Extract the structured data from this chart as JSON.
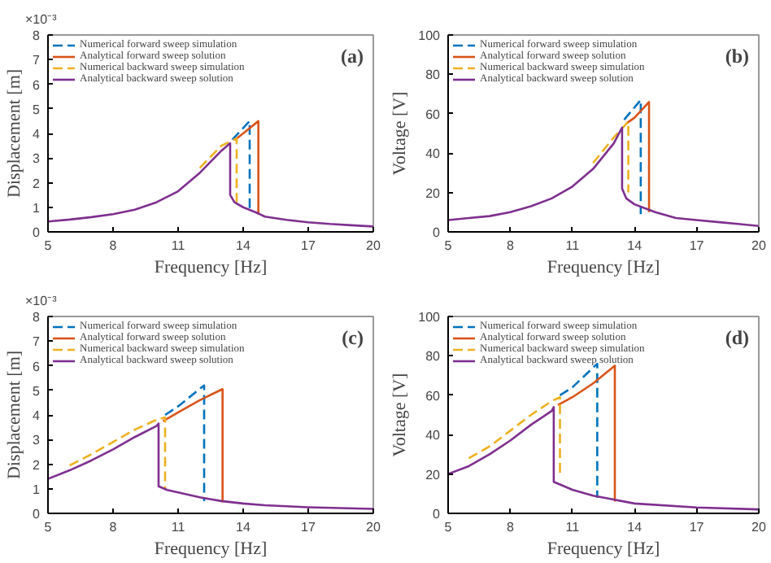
{
  "chart_data": [
    {
      "type": "line",
      "xlabel": "Frequency [Hz]",
      "ylabel": "Displacement [m]",
      "annotations": [
        "×10⁻³",
        "(a)"
      ],
      "xlim": [
        5,
        20
      ],
      "xticks": [
        5,
        8,
        11,
        14,
        17,
        20
      ],
      "ylim": [
        0,
        8
      ],
      "yticks": [
        0,
        1,
        2,
        3,
        4,
        5,
        6,
        7,
        8
      ],
      "grid": false,
      "legend": "top left",
      "series": [
        {
          "name": "Numerical forward sweep simulation",
          "color": "#0072bd",
          "line_style": "dashed",
          "x": [
            13.5,
            14.3,
            14.3
          ],
          "values": [
            3.75,
            4.5,
            0.8
          ]
        },
        {
          "name": "Analytical forward sweep solution",
          "color": "#d95319",
          "x": [
            13.6,
            14,
            14.7,
            14.7
          ],
          "values": [
            3.73,
            4.0,
            4.5,
            0.7
          ]
        },
        {
          "name": "Numerical backward sweep simulation",
          "color": "#edb120",
          "line_style": "dashed",
          "x": [
            12,
            13,
            13.7,
            13.7
          ],
          "values": [
            2.6,
            3.5,
            3.8,
            1.2
          ]
        },
        {
          "name": "Analytical backward sweep solution",
          "color": "#7e2f8e",
          "x": [
            5,
            6,
            7,
            8,
            9,
            10,
            11,
            12,
            13,
            13.4,
            13.4,
            13.6,
            14,
            14.7,
            15,
            16,
            17,
            18,
            19,
            20
          ],
          "values": [
            0.42,
            0.5,
            0.6,
            0.72,
            0.9,
            1.2,
            1.65,
            2.4,
            3.3,
            3.6,
            1.5,
            1.2,
            1.0,
            0.75,
            0.62,
            0.49,
            0.39,
            0.32,
            0.27,
            0.22
          ]
        }
      ]
    },
    {
      "type": "line",
      "xlabel": "Frequency [Hz]",
      "ylabel": "Voltage [V]",
      "annotations": [
        "(b)"
      ],
      "xlim": [
        5,
        20
      ],
      "xticks": [
        5,
        8,
        11,
        14,
        17,
        20
      ],
      "ylim": [
        0,
        100
      ],
      "yticks": [
        0,
        20,
        40,
        60,
        80,
        100
      ],
      "grid": false,
      "legend": "top left",
      "series": [
        {
          "name": "Numerical forward sweep simulation",
          "color": "#0072bd",
          "line_style": "dashed",
          "x": [
            13.5,
            14.3,
            14.3
          ],
          "values": [
            57,
            67,
            9
          ]
        },
        {
          "name": "Analytical forward sweep solution",
          "color": "#d95319",
          "x": [
            13.6,
            14,
            14.7,
            14.7
          ],
          "values": [
            55,
            58,
            66,
            10
          ]
        },
        {
          "name": "Numerical backward sweep simulation",
          "color": "#edb120",
          "line_style": "dashed",
          "x": [
            12,
            13,
            13.7,
            13.7
          ],
          "values": [
            35,
            48,
            56,
            20
          ]
        },
        {
          "name": "Analytical backward sweep solution",
          "color": "#7e2f8e",
          "x": [
            5,
            6,
            7,
            8,
            9,
            10,
            11,
            12,
            13,
            13.4,
            13.4,
            13.6,
            14,
            15,
            16,
            17,
            18,
            19,
            20
          ],
          "values": [
            6,
            7,
            8,
            10,
            13,
            17,
            23,
            32,
            45,
            53,
            22,
            17,
            14,
            10,
            7,
            6,
            5,
            4,
            3
          ]
        }
      ]
    },
    {
      "type": "line",
      "xlabel": "Frequency [Hz]",
      "ylabel": "Displacement [m]",
      "annotations": [
        "×10⁻³",
        "(c)"
      ],
      "xlim": [
        5,
        20
      ],
      "xticks": [
        5,
        8,
        11,
        14,
        17,
        20
      ],
      "ylim": [
        0,
        8
      ],
      "yticks": [
        0,
        1,
        2,
        3,
        4,
        5,
        6,
        7,
        8
      ],
      "grid": false,
      "legend": "top left",
      "series": [
        {
          "name": "Numerical forward sweep simulation",
          "color": "#0072bd",
          "line_style": "dashed",
          "x": [
            10.4,
            11,
            12.2,
            12.2
          ],
          "values": [
            4.0,
            4.35,
            5.2,
            0.5
          ]
        },
        {
          "name": "Analytical forward sweep solution",
          "color": "#d95319",
          "x": [
            10.3,
            10.5,
            11,
            12,
            13.05,
            13.05
          ],
          "values": [
            3.75,
            3.85,
            4.1,
            4.6,
            5.05,
            0.45
          ]
        },
        {
          "name": "Numerical backward sweep simulation",
          "color": "#edb120",
          "line_style": "dashed",
          "x": [
            6,
            7,
            8,
            9,
            10,
            10.4,
            10.4
          ],
          "values": [
            1.95,
            2.4,
            2.9,
            3.4,
            3.8,
            3.9,
            1.0
          ]
        },
        {
          "name": "Analytical backward sweep solution",
          "color": "#7e2f8e",
          "x": [
            5,
            6,
            7,
            8,
            9,
            10,
            10.1,
            10.1,
            10.5,
            11,
            12,
            13,
            14,
            15,
            17,
            20
          ],
          "values": [
            1.4,
            1.75,
            2.15,
            2.6,
            3.1,
            3.55,
            3.65,
            1.1,
            0.95,
            0.85,
            0.65,
            0.5,
            0.4,
            0.33,
            0.25,
            0.18
          ]
        }
      ]
    },
    {
      "type": "line",
      "xlabel": "Frequency [Hz]",
      "ylabel": "Voltage [V]",
      "annotations": [
        "(d)"
      ],
      "xlim": [
        5,
        20
      ],
      "xticks": [
        5,
        8,
        11,
        14,
        17,
        20
      ],
      "ylim": [
        0,
        100
      ],
      "yticks": [
        0,
        20,
        40,
        60,
        80,
        100
      ],
      "grid": false,
      "legend": "top left",
      "series": [
        {
          "name": "Numerical forward sweep simulation",
          "color": "#0072bd",
          "line_style": "dashed",
          "x": [
            10.4,
            11,
            12.2,
            12.2
          ],
          "values": [
            60,
            64,
            76,
            8
          ]
        },
        {
          "name": "Analytical forward sweep solution",
          "color": "#d95319",
          "x": [
            10.3,
            11,
            12,
            13.05,
            13.05
          ],
          "values": [
            55,
            59,
            66,
            75,
            6
          ]
        },
        {
          "name": "Numerical backward sweep simulation",
          "color": "#edb120",
          "line_style": "dashed",
          "x": [
            6,
            7,
            8,
            9,
            10,
            10.4,
            10.4
          ],
          "values": [
            28,
            34,
            42,
            50,
            57,
            59,
            20
          ]
        },
        {
          "name": "Analytical backward sweep solution",
          "color": "#7e2f8e",
          "x": [
            5,
            6,
            7,
            8,
            9,
            10,
            10.1,
            10.1,
            11,
            12,
            13,
            14,
            17,
            20
          ],
          "values": [
            20,
            24,
            30,
            37,
            45,
            52,
            54,
            16,
            12,
            9,
            7,
            5,
            3,
            2
          ]
        }
      ]
    }
  ]
}
